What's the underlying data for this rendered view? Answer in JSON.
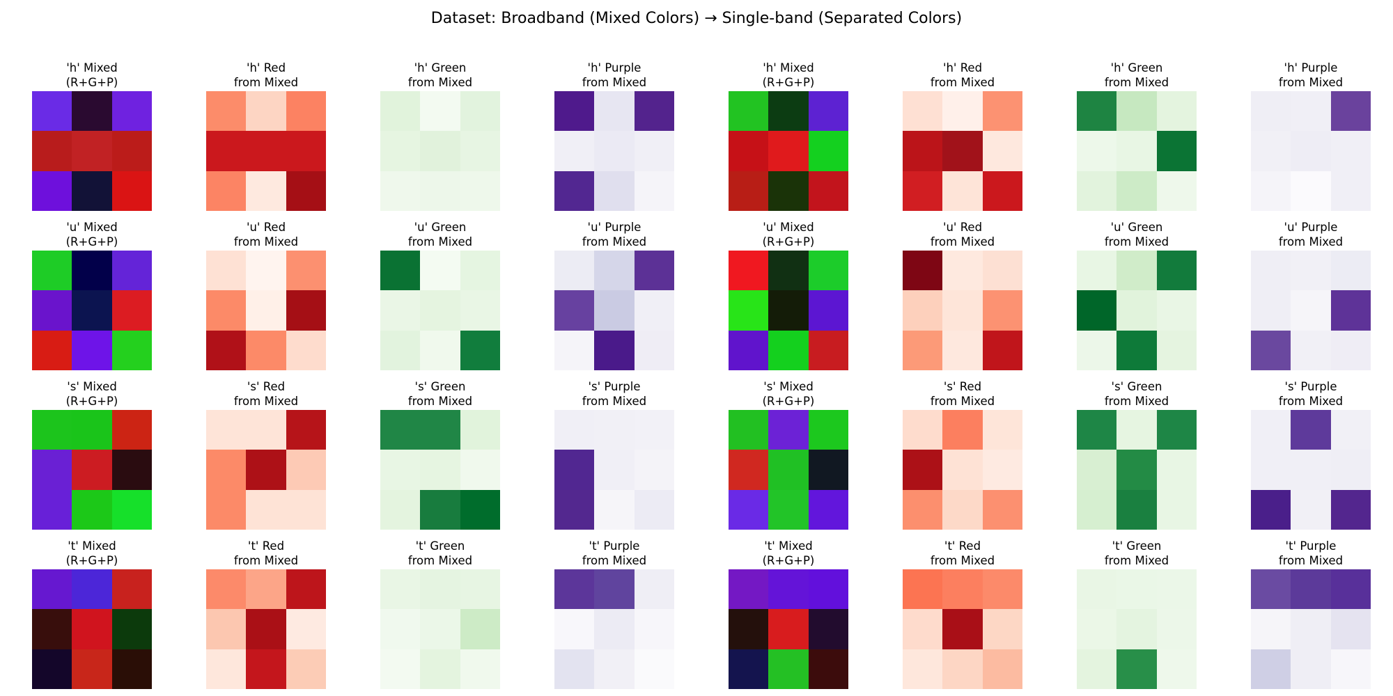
{
  "title": "Dataset: Broadband (Mixed Colors) → Single-band (Separated Colors)",
  "chart_data": {
    "type": "heatmap",
    "rows": [
      {
        "panels": [
          {
            "title": "'h' Mixed\n(R+G+P)",
            "cells": [
              "#6a2be6",
              "#2a0a30",
              "#6f22e0",
              "#b81c1c",
              "#c12224",
              "#bb1c1a",
              "#6e10dc",
              "#121237",
              "#da1414"
            ]
          },
          {
            "title": "'h' Red\nfrom Mixed",
            "cells": [
              "#fc8c6a",
              "#fdd5c3",
              "#fc8262",
              "#cb181d",
              "#cb181d",
              "#cb181d",
              "#fc8464",
              "#fee9df",
              "#a50f15"
            ]
          },
          {
            "title": "'h' Green\nfrom Mixed",
            "cells": [
              "#e1f3dc",
              "#f3faf1",
              "#e2f3de",
              "#e6f5e1",
              "#e1f2dc",
              "#e7f5e3",
              "#eff8ec",
              "#edf7ea",
              "#eef8eb"
            ]
          },
          {
            "title": "'h' Purple\nfrom Mixed",
            "cells": [
              "#4f1a8c",
              "#e7e6f2",
              "#53238d",
              "#f0eff6",
              "#ebeaf4",
              "#f0eff6",
              "#522791",
              "#e0dfee",
              "#f5f4f9"
            ]
          },
          {
            "title": "'h' Mixed\n(R+G+P)",
            "cells": [
              "#22c322",
              "#0c3c12",
              "#5d22d2",
              "#c61117",
              "#e01a1c",
              "#14d01f",
              "#b81e16",
              "#1a3308",
              "#c2141c"
            ]
          },
          {
            "title": "'h' Red\nfrom Mixed",
            "cells": [
              "#fee0d3",
              "#fff0ea",
              "#fc9272",
              "#bb1419",
              "#a1121a",
              "#fee8de",
              "#d11e22",
              "#fee4d8",
              "#cb181d"
            ]
          },
          {
            "title": "'h' Green\nfrom Mixed",
            "cells": [
              "#1e8442",
              "#c6e8c0",
              "#e4f4df",
              "#edf8ea",
              "#e8f6e4",
              "#0b7434",
              "#e2f3dd",
              "#cdebc7",
              "#eef8eb"
            ]
          },
          {
            "title": "'h' Purple\nfrom Mixed",
            "cells": [
              "#efeef5",
              "#f0eff6",
              "#6a429d",
              "#f1f0f6",
              "#eeedf5",
              "#f0eff6",
              "#f5f4f9",
              "#fbfafd",
              "#f0eff6"
            ]
          }
        ]
      },
      {
        "panels": [
          {
            "title": "'u' Mixed\n(R+G+P)",
            "cells": [
              "#1ecc26",
              "#02004a",
              "#6424d8",
              "#6a14cc",
              "#0c1450",
              "#dc1c22",
              "#d81c14",
              "#6e14e8",
              "#24d01e"
            ]
          },
          {
            "title": "'u' Red\nfrom Mixed",
            "cells": [
              "#fee1d4",
              "#fff4ef",
              "#fc9070",
              "#fc8a68",
              "#fff0e8",
              "#a50f15",
              "#b01118",
              "#fc8a68",
              "#fedccd"
            ]
          },
          {
            "title": "'u' Green\nfrom Mixed",
            "cells": [
              "#0a7233",
              "#f4fbf2",
              "#e5f5e1",
              "#eaf6e6",
              "#e5f4e0",
              "#e9f6e5",
              "#e2f3de",
              "#f0f9ed",
              "#117d3d"
            ]
          },
          {
            "title": "'u' Purple\nfrom Mixed",
            "cells": [
              "#ececf4",
              "#d5d6e9",
              "#5c3196",
              "#6741a0",
              "#cacbe3",
              "#f0eff6",
              "#f5f4f9",
              "#4a1a8a",
              "#efedf5"
            ]
          },
          {
            "title": "'u' Mixed\n(R+G+P)",
            "cells": [
              "#f01820",
              "#113013",
              "#1ccc2a",
              "#28e418",
              "#141c08",
              "#5c16d2",
              "#6014cc",
              "#14d01e",
              "#c81c20"
            ]
          },
          {
            "title": "'u' Red\nfrom Mixed",
            "cells": [
              "#7e0614",
              "#fee9df",
              "#fde0d3",
              "#fdd0bc",
              "#fee5d9",
              "#fc9272",
              "#fc9a78",
              "#fee8de",
              "#c0151b"
            ]
          },
          {
            "title": "'u' Green\nfrom Mixed",
            "cells": [
              "#e8f6e4",
              "#d0ecc9",
              "#127b3c",
              "#006629",
              "#e1f3dc",
              "#e9f6e5",
              "#ecf7e9",
              "#0e7a39",
              "#e5f4e0"
            ]
          },
          {
            "title": "'u' Purple\nfrom Mixed",
            "cells": [
              "#efeef5",
              "#f1f0f6",
              "#ececf4",
              "#efeef5",
              "#f6f5f9",
              "#5e3398",
              "#6a489f",
              "#f1f0f6",
              "#efedf5"
            ]
          }
        ]
      },
      {
        "panels": [
          {
            "title": "'s' Mixed\n(R+G+P)",
            "cells": [
              "#1cc41c",
              "#1ac41a",
              "#cc2414",
              "#6a20d4",
              "#cc1c22",
              "#2a0c10",
              "#6820d8",
              "#1cc818",
              "#16e02a"
            ]
          },
          {
            "title": "'s' Red\nfrom Mixed",
            "cells": [
              "#fee4d8",
              "#fee4d8",
              "#b61419",
              "#fc8a68",
              "#ad1117",
              "#fdcab5",
              "#fc8a68",
              "#fee3d6",
              "#fee3d6"
            ]
          },
          {
            "title": "'s' Green\nfrom Mixed",
            "cells": [
              "#208646",
              "#208646",
              "#e1f3dc",
              "#e8f6e4",
              "#e6f5e1",
              "#f0f9ed",
              "#e4f4df",
              "#187c3e",
              "#006d2c"
            ]
          },
          {
            "title": "'s' Purple\nfrom Mixed",
            "cells": [
              "#f0eff6",
              "#f1f0f6",
              "#f2f1f7",
              "#512791",
              "#f0eff6",
              "#f4f3f8",
              "#53288f",
              "#f6f5f9",
              "#ecebf4"
            ]
          },
          {
            "title": "'s' Mixed\n(R+G+P)",
            "cells": [
              "#22c022",
              "#6c22d6",
              "#1cc81e",
              "#d02820",
              "#20c024",
              "#111822",
              "#6a2ae6",
              "#22c428",
              "#6216dc"
            ]
          },
          {
            "title": "'s' Red\nfrom Mixed",
            "cells": [
              "#fedccd",
              "#fc7f5f",
              "#fee5d9",
              "#ac1117",
              "#fee2d5",
              "#feeae1",
              "#fc8f6e",
              "#fdd9c8",
              "#fc9070"
            ]
          },
          {
            "title": "'s' Green\nfrom Mixed",
            "cells": [
              "#1e8646",
              "#e6f5e1",
              "#1e8646",
              "#d8efd2",
              "#238b45",
              "#e8f6e4",
              "#d6efd0",
              "#1a8040",
              "#e8f6e4"
            ]
          },
          {
            "title": "'s' Purple\nfrom Mixed",
            "cells": [
              "#f0eff6",
              "#5e3a9b",
              "#f1f0f6",
              "#f0eff6",
              "#f0eff6",
              "#efeef5",
              "#4a1f8a",
              "#f1f0f6",
              "#53268e"
            ]
          }
        ]
      },
      {
        "panels": [
          {
            "title": "'t' Mixed\n(R+G+P)",
            "cells": [
              "#6618d0",
              "#4c26d8",
              "#c8221e",
              "#380e0c",
              "#d0141e",
              "#0c3a0c",
              "#14062a",
              "#c8261a",
              "#2a0e06"
            ]
          },
          {
            "title": "'t' Red\nfrom Mixed",
            "cells": [
              "#fc8a6a",
              "#fca588",
              "#bd151b",
              "#fcc7b0",
              "#aa1016",
              "#feeae1",
              "#fee7dc",
              "#c4161c",
              "#fcccb6"
            ]
          },
          {
            "title": "'t' Green\nfrom Mixed",
            "cells": [
              "#e9f6e5",
              "#e5f4e1",
              "#e7f5e3",
              "#f0f9ee",
              "#ebf7e8",
              "#cdebc6",
              "#f3faf1",
              "#e4f4df",
              "#f0f9ed"
            ]
          },
          {
            "title": "'t' Purple\nfrom Mixed",
            "cells": [
              "#5c369a",
              "#60449e",
              "#efeef5",
              "#f8f7fb",
              "#ecebf4",
              "#f7f6fa",
              "#e3e3f0",
              "#f1f0f6",
              "#fafafc"
            ]
          },
          {
            "title": "'t' Mixed\n(R+G+P)",
            "cells": [
              "#7418c4",
              "#6414d8",
              "#6210dc",
              "#24100c",
              "#d81c1e",
              "#220c2e",
              "#14144e",
              "#24c024",
              "#3c0c0c"
            ]
          },
          {
            "title": "'t' Red\nfrom Mixed",
            "cells": [
              "#fc7452",
              "#fc7f5f",
              "#fc8a6a",
              "#fedbcc",
              "#a90f17",
              "#fdd7c5",
              "#fee7dc",
              "#fdd6c4",
              "#fcbba1"
            ]
          },
          {
            "title": "'t' Green\nfrom Mixed",
            "cells": [
              "#e9f6e5",
              "#eaf7e7",
              "#ebf7e8",
              "#ebf7e7",
              "#e4f4e0",
              "#ecf7e9",
              "#e4f4df",
              "#288f49",
              "#eef8eb"
            ]
          },
          {
            "title": "'t' Purple\nfrom Mixed",
            "cells": [
              "#6a4ba2",
              "#5c3a9a",
              "#58309a",
              "#f6f5f9",
              "#efeef5",
              "#e5e3f0",
              "#cfcfe5",
              "#efeef5",
              "#f7f6fa"
            ]
          }
        ]
      }
    ]
  }
}
